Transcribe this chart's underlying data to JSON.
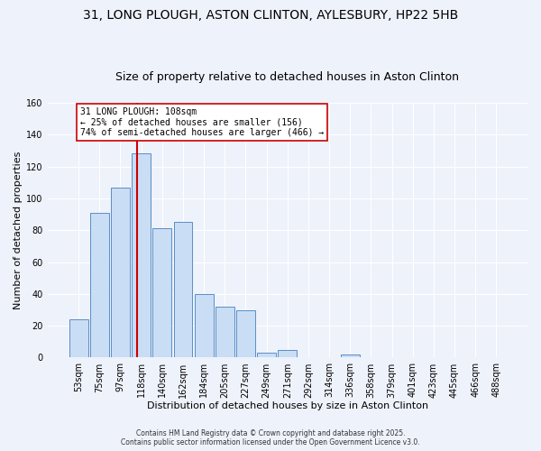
{
  "title": "31, LONG PLOUGH, ASTON CLINTON, AYLESBURY, HP22 5HB",
  "subtitle": "Size of property relative to detached houses in Aston Clinton",
  "xlabel": "Distribution of detached houses by size in Aston Clinton",
  "ylabel": "Number of detached properties",
  "categories": [
    "53sqm",
    "75sqm",
    "97sqm",
    "118sqm",
    "140sqm",
    "162sqm",
    "184sqm",
    "205sqm",
    "227sqm",
    "249sqm",
    "271sqm",
    "292sqm",
    "314sqm",
    "336sqm",
    "358sqm",
    "379sqm",
    "401sqm",
    "423sqm",
    "445sqm",
    "466sqm",
    "488sqm"
  ],
  "values": [
    24,
    91,
    107,
    128,
    81,
    85,
    40,
    32,
    30,
    3,
    5,
    0,
    0,
    2,
    0,
    0,
    0,
    0,
    0,
    0,
    0
  ],
  "bar_color": "#c9ddf5",
  "bar_edge_color": "#5b8ec4",
  "vline_x": 2.82,
  "vline_color": "#cc0000",
  "annotation_title": "31 LONG PLOUGH: 108sqm",
  "annotation_line1": "← 25% of detached houses are smaller (156)",
  "annotation_line2": "74% of semi-detached houses are larger (466) →",
  "annotation_box_color": "#ffffff",
  "annotation_box_edge": "#cc0000",
  "ylim": [
    0,
    160
  ],
  "yticks": [
    0,
    20,
    40,
    60,
    80,
    100,
    120,
    140,
    160
  ],
  "footer_line1": "Contains HM Land Registry data © Crown copyright and database right 2025.",
  "footer_line2": "Contains public sector information licensed under the Open Government Licence v3.0.",
  "background_color": "#eef2fb",
  "title_fontsize": 10,
  "subtitle_fontsize": 9,
  "grid_color": "#ffffff"
}
